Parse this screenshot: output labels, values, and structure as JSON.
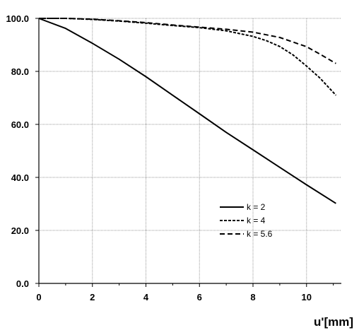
{
  "chart_data": {
    "type": "line",
    "title": "",
    "xlabel": "u'[mm]",
    "ylabel": "",
    "xlim": [
      0,
      11.3
    ],
    "ylim": [
      0,
      100
    ],
    "grid": true,
    "legend_position": "lower-right",
    "x_ticks": [
      "0",
      "2",
      "4",
      "6",
      "8",
      "10"
    ],
    "y_ticks": [
      "0.0",
      "20.0",
      "40.0",
      "60.0",
      "80.0",
      "100.0"
    ],
    "series": [
      {
        "name": "k = 2",
        "style": "solid",
        "x": [
          0,
          1,
          2,
          3,
          4,
          5,
          6,
          7,
          8,
          9,
          10,
          11.1
        ],
        "y": [
          100,
          96.2,
          90.6,
          84.6,
          78.0,
          71.0,
          64.0,
          57.0,
          50.4,
          43.8,
          37.2,
          30.2
        ]
      },
      {
        "name": "k = 4",
        "style": "dotted-dash",
        "x": [
          0,
          1,
          2,
          3,
          4,
          5,
          6,
          7,
          8,
          8.5,
          9,
          9.5,
          10,
          10.5,
          11.1
        ],
        "y": [
          100,
          100,
          99.6,
          99.0,
          98.2,
          97.3,
          96.5,
          95.3,
          93.2,
          91.6,
          89.4,
          86.2,
          82.0,
          77.5,
          71.0
        ]
      },
      {
        "name": "k = 5.6",
        "style": "dashed",
        "x": [
          0,
          1,
          2,
          3,
          4,
          5,
          6,
          7,
          8,
          9,
          10,
          10.5,
          11.1
        ],
        "y": [
          100,
          100,
          99.7,
          99.1,
          98.4,
          97.5,
          96.7,
          95.9,
          94.8,
          92.8,
          89.3,
          86.5,
          83.0
        ]
      }
    ]
  }
}
